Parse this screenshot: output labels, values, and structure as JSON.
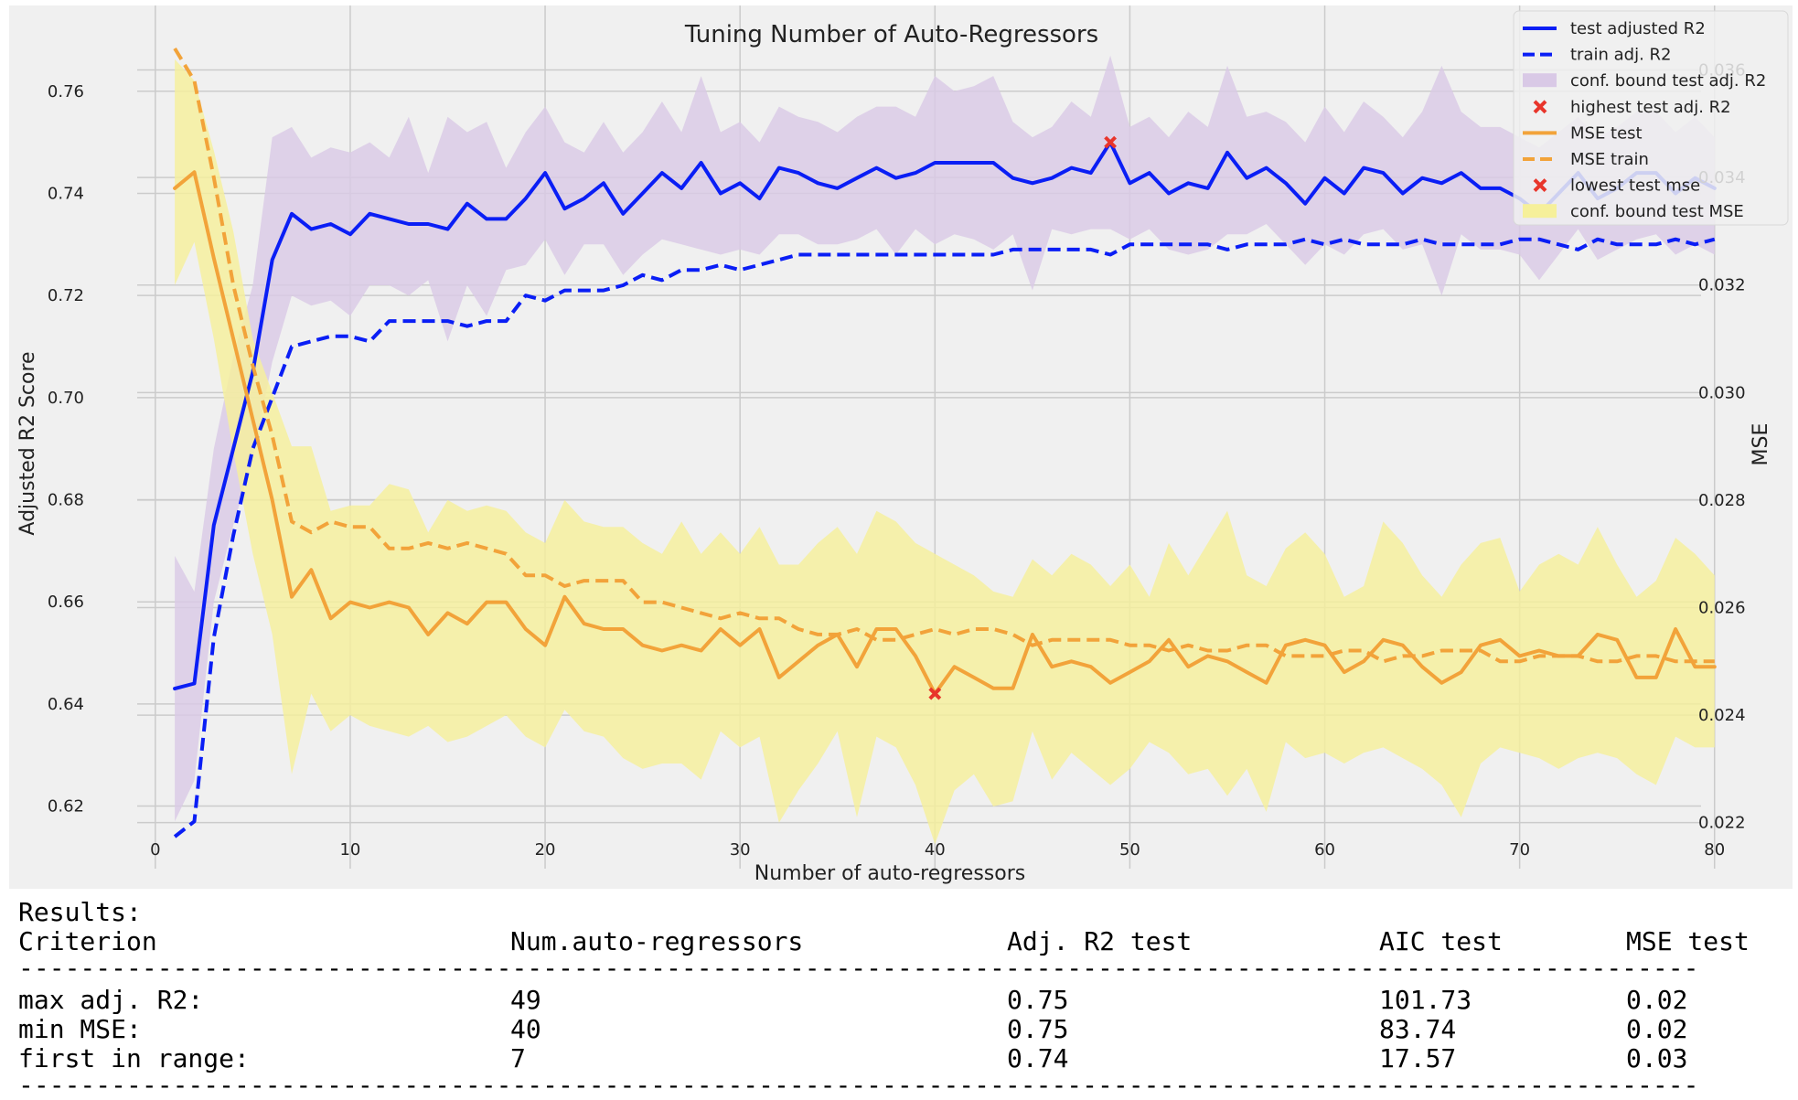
{
  "colors": {
    "test_r2": "#0a1ef5",
    "train_r2": "#0a1ef5",
    "conf_r2": "#d9c9e6",
    "marker": "#e8352b",
    "mse_test": "#f2a33a",
    "mse_train": "#f2a33a",
    "conf_mse": "#f6f09a",
    "plot_bg": "#f0f0f0",
    "grid": "#cbcbcb"
  },
  "chart_data": {
    "type": "line",
    "title": "Tuning Number of Auto-Regressors",
    "xlabel": "Number of auto-regressors",
    "ylabel": "Adjusted R2 Score",
    "y2label": "MSE",
    "xlim": [
      -7.5,
      84
    ],
    "ylim": [
      0.6038,
      0.7768
    ],
    "y2lim": [
      0.02077,
      0.0372
    ],
    "xticks": [
      0,
      10,
      20,
      30,
      40,
      50,
      60,
      70,
      80
    ],
    "xtick_labels": [
      "0",
      "10",
      "20",
      "30",
      "40",
      "50",
      "60",
      "70",
      "80"
    ],
    "yticks": [
      0.62,
      0.64,
      0.66,
      0.68,
      0.7,
      0.72,
      0.74,
      0.76
    ],
    "ytick_labels": [
      "0.62",
      "0.64",
      "0.66",
      "0.68",
      "0.70",
      "0.72",
      "0.74",
      "0.76"
    ],
    "y2ticks": [
      0.022,
      0.024,
      0.026,
      0.028,
      0.03,
      0.032,
      0.034,
      0.036
    ],
    "y2tick_labels": [
      "0.022",
      "0.024",
      "0.026",
      "0.028",
      "0.030",
      "0.032",
      "0.034",
      "0.036"
    ],
    "x": [
      1,
      2,
      3,
      4,
      5,
      6,
      7,
      8,
      9,
      10,
      11,
      12,
      13,
      14,
      15,
      16,
      17,
      18,
      19,
      20,
      21,
      22,
      23,
      24,
      25,
      26,
      27,
      28,
      29,
      30,
      31,
      32,
      33,
      34,
      35,
      36,
      37,
      38,
      39,
      40,
      41,
      42,
      43,
      44,
      45,
      46,
      47,
      48,
      49,
      50,
      51,
      52,
      53,
      54,
      55,
      56,
      57,
      58,
      59,
      60,
      61,
      62,
      63,
      64,
      65,
      66,
      67,
      68,
      69,
      70,
      71,
      72,
      73,
      74,
      75,
      76,
      77,
      78,
      79,
      80
    ],
    "series": [
      {
        "name": "test adjusted R2",
        "axis": "left",
        "style": "solid",
        "values": [
          0.643,
          0.644,
          0.675,
          0.69,
          0.705,
          0.727,
          0.736,
          0.733,
          0.734,
          0.732,
          0.736,
          0.735,
          0.734,
          0.734,
          0.733,
          0.738,
          0.735,
          0.735,
          0.739,
          0.744,
          0.737,
          0.739,
          0.742,
          0.736,
          0.74,
          0.744,
          0.741,
          0.746,
          0.74,
          0.742,
          0.739,
          0.745,
          0.744,
          0.742,
          0.741,
          0.743,
          0.745,
          0.743,
          0.744,
          0.746,
          0.746,
          0.746,
          0.746,
          0.743,
          0.742,
          0.743,
          0.745,
          0.744,
          0.75,
          0.742,
          0.744,
          0.74,
          0.742,
          0.741,
          0.748,
          0.743,
          0.745,
          0.742,
          0.738,
          0.743,
          0.74,
          0.745,
          0.744,
          0.74,
          0.743,
          0.742,
          0.744,
          0.741,
          0.741,
          0.739,
          0.736,
          0.74,
          0.744,
          0.739,
          0.741,
          0.744,
          0.744,
          0.74,
          0.743,
          0.741
        ]
      },
      {
        "name": "train adj. R2",
        "axis": "left",
        "style": "dashed",
        "values": [
          0.614,
          0.617,
          0.653,
          0.673,
          0.69,
          0.7,
          0.71,
          0.711,
          0.712,
          0.712,
          0.711,
          0.715,
          0.715,
          0.715,
          0.715,
          0.714,
          0.715,
          0.715,
          0.72,
          0.719,
          0.721,
          0.721,
          0.721,
          0.722,
          0.724,
          0.723,
          0.725,
          0.725,
          0.726,
          0.725,
          0.726,
          0.727,
          0.728,
          0.728,
          0.728,
          0.728,
          0.728,
          0.728,
          0.728,
          0.728,
          0.728,
          0.728,
          0.728,
          0.729,
          0.729,
          0.729,
          0.729,
          0.729,
          0.728,
          0.73,
          0.73,
          0.73,
          0.73,
          0.73,
          0.729,
          0.73,
          0.73,
          0.73,
          0.731,
          0.73,
          0.731,
          0.73,
          0.73,
          0.73,
          0.731,
          0.73,
          0.73,
          0.73,
          0.73,
          0.731,
          0.731,
          0.73,
          0.729,
          0.731,
          0.73,
          0.73,
          0.73,
          0.731,
          0.73,
          0.731
        ]
      },
      {
        "name": "MSE test",
        "axis": "right",
        "style": "solid",
        "values": [
          0.0338,
          0.0341,
          0.0325,
          0.031,
          0.0295,
          0.028,
          0.0262,
          0.0267,
          0.0258,
          0.0261,
          0.026,
          0.0261,
          0.026,
          0.0255,
          0.0259,
          0.0257,
          0.0261,
          0.0261,
          0.0256,
          0.0253,
          0.0262,
          0.0257,
          0.0256,
          0.0256,
          0.0253,
          0.0252,
          0.0253,
          0.0252,
          0.0256,
          0.0253,
          0.0256,
          0.0247,
          0.025,
          0.0253,
          0.0255,
          0.0249,
          0.0256,
          0.0256,
          0.0251,
          0.0244,
          0.0249,
          0.0247,
          0.0245,
          0.0245,
          0.0255,
          0.0249,
          0.025,
          0.0249,
          0.0246,
          0.0248,
          0.025,
          0.0254,
          0.0249,
          0.0251,
          0.025,
          0.0248,
          0.0246,
          0.0253,
          0.0254,
          0.0253,
          0.0248,
          0.025,
          0.0254,
          0.0253,
          0.0249,
          0.0246,
          0.0248,
          0.0253,
          0.0254,
          0.0251,
          0.0252,
          0.0251,
          0.0251,
          0.0255,
          0.0254,
          0.0247,
          0.0247,
          0.0256,
          0.0249,
          0.0249
        ]
      },
      {
        "name": "MSE train",
        "axis": "right",
        "style": "dashed",
        "values": [
          0.0364,
          0.0358,
          0.034,
          0.032,
          0.0305,
          0.0292,
          0.0276,
          0.0274,
          0.0276,
          0.0275,
          0.0275,
          0.0271,
          0.0271,
          0.0272,
          0.0271,
          0.0272,
          0.0271,
          0.027,
          0.0266,
          0.0266,
          0.0264,
          0.0265,
          0.0265,
          0.0265,
          0.0261,
          0.0261,
          0.026,
          0.0259,
          0.0258,
          0.0259,
          0.0258,
          0.0258,
          0.0256,
          0.0255,
          0.0255,
          0.0256,
          0.0254,
          0.0254,
          0.0255,
          0.0256,
          0.0255,
          0.0256,
          0.0256,
          0.0255,
          0.0253,
          0.0254,
          0.0254,
          0.0254,
          0.0254,
          0.0253,
          0.0253,
          0.0252,
          0.0253,
          0.0252,
          0.0252,
          0.0253,
          0.0253,
          0.0251,
          0.0251,
          0.0251,
          0.0252,
          0.0252,
          0.025,
          0.0251,
          0.0251,
          0.0252,
          0.0252,
          0.0252,
          0.025,
          0.025,
          0.0251,
          0.0251,
          0.0251,
          0.025,
          0.025,
          0.0251,
          0.0251,
          0.025,
          0.025,
          0.025
        ]
      }
    ],
    "bands": [
      {
        "name": "conf. bound test adj. R2",
        "axis": "left",
        "upper": [
          0.669,
          0.662,
          0.69,
          0.708,
          0.722,
          0.751,
          0.753,
          0.747,
          0.749,
          0.748,
          0.75,
          0.747,
          0.755,
          0.744,
          0.755,
          0.752,
          0.754,
          0.745,
          0.752,
          0.757,
          0.75,
          0.748,
          0.754,
          0.748,
          0.752,
          0.758,
          0.752,
          0.763,
          0.752,
          0.754,
          0.75,
          0.757,
          0.755,
          0.754,
          0.752,
          0.755,
          0.757,
          0.757,
          0.755,
          0.763,
          0.76,
          0.761,
          0.763,
          0.754,
          0.751,
          0.753,
          0.758,
          0.755,
          0.767,
          0.753,
          0.755,
          0.751,
          0.756,
          0.753,
          0.765,
          0.755,
          0.756,
          0.754,
          0.75,
          0.757,
          0.752,
          0.758,
          0.755,
          0.751,
          0.756,
          0.765,
          0.756,
          0.753,
          0.753,
          0.751,
          0.749,
          0.752,
          0.755,
          0.751,
          0.753,
          0.756,
          0.756,
          0.752,
          0.755,
          0.751
        ],
        "lower": [
          0.617,
          0.625,
          0.66,
          0.675,
          0.688,
          0.707,
          0.72,
          0.718,
          0.719,
          0.716,
          0.722,
          0.722,
          0.72,
          0.723,
          0.711,
          0.722,
          0.716,
          0.725,
          0.726,
          0.731,
          0.724,
          0.73,
          0.73,
          0.724,
          0.728,
          0.731,
          0.73,
          0.729,
          0.728,
          0.729,
          0.728,
          0.732,
          0.732,
          0.73,
          0.73,
          0.731,
          0.733,
          0.728,
          0.733,
          0.73,
          0.732,
          0.731,
          0.729,
          0.732,
          0.721,
          0.733,
          0.732,
          0.733,
          0.733,
          0.731,
          0.733,
          0.729,
          0.728,
          0.729,
          0.732,
          0.732,
          0.734,
          0.73,
          0.726,
          0.73,
          0.728,
          0.732,
          0.733,
          0.729,
          0.73,
          0.72,
          0.732,
          0.729,
          0.729,
          0.728,
          0.723,
          0.728,
          0.733,
          0.727,
          0.729,
          0.731,
          0.732,
          0.728,
          0.73,
          0.728
        ]
      },
      {
        "name": "conf. bound test MSE",
        "axis": "right",
        "upper": [
          0.0362,
          0.0358,
          0.0345,
          0.033,
          0.031,
          0.03,
          0.029,
          0.029,
          0.0278,
          0.0279,
          0.0279,
          0.0283,
          0.0282,
          0.0274,
          0.028,
          0.0278,
          0.0279,
          0.0278,
          0.0274,
          0.0272,
          0.028,
          0.0276,
          0.0275,
          0.0275,
          0.0272,
          0.027,
          0.0276,
          0.027,
          0.0274,
          0.027,
          0.0275,
          0.0268,
          0.0268,
          0.0272,
          0.0275,
          0.027,
          0.0278,
          0.0276,
          0.0272,
          0.027,
          0.0268,
          0.0266,
          0.0263,
          0.0262,
          0.0269,
          0.0266,
          0.027,
          0.0268,
          0.0264,
          0.0268,
          0.0262,
          0.0272,
          0.0266,
          0.0272,
          0.0278,
          0.0266,
          0.0264,
          0.0271,
          0.0274,
          0.027,
          0.0262,
          0.0264,
          0.0276,
          0.0272,
          0.0266,
          0.0262,
          0.0268,
          0.0272,
          0.0273,
          0.0263,
          0.0268,
          0.027,
          0.0268,
          0.0275,
          0.0268,
          0.0262,
          0.0265,
          0.0273,
          0.027,
          0.0266
        ],
        "lower": [
          0.032,
          0.0328,
          0.031,
          0.0289,
          0.027,
          0.0255,
          0.0229,
          0.0244,
          0.0237,
          0.024,
          0.0238,
          0.0237,
          0.0236,
          0.0238,
          0.0235,
          0.0236,
          0.0238,
          0.024,
          0.0236,
          0.0234,
          0.0241,
          0.0237,
          0.0236,
          0.0232,
          0.023,
          0.0231,
          0.0231,
          0.0228,
          0.0237,
          0.0234,
          0.0236,
          0.022,
          0.0226,
          0.0231,
          0.0237,
          0.0221,
          0.0236,
          0.0234,
          0.0227,
          0.0216,
          0.0226,
          0.0229,
          0.0223,
          0.0224,
          0.0237,
          0.0228,
          0.0233,
          0.023,
          0.0227,
          0.023,
          0.0235,
          0.0233,
          0.0229,
          0.023,
          0.0225,
          0.023,
          0.0222,
          0.0235,
          0.0232,
          0.0233,
          0.0231,
          0.0233,
          0.0234,
          0.0232,
          0.023,
          0.0227,
          0.0221,
          0.0231,
          0.0234,
          0.0233,
          0.0232,
          0.023,
          0.0232,
          0.0233,
          0.0232,
          0.0229,
          0.0227,
          0.0236,
          0.0234,
          0.0234
        ]
      }
    ],
    "markers": [
      {
        "name": "highest test adj. R2",
        "axis": "left",
        "x": 49,
        "y": 0.75
      },
      {
        "name": "lowest test mse",
        "axis": "right",
        "x": 40,
        "y": 0.0244
      }
    ],
    "legend": {
      "position": "top-right",
      "entries": [
        "test adjusted R2",
        "train adj. R2",
        "conf. bound test adj. R2",
        "highest test adj. R2",
        "MSE test",
        "MSE train",
        "lowest test mse",
        "conf. bound test MSE"
      ]
    }
  },
  "results": {
    "heading": "Results:",
    "columns": [
      "Criterion",
      "Num.auto-regressors",
      "Adj. R2 test",
      "AIC test",
      "MSE test"
    ],
    "rows": [
      [
        "max adj. R2:",
        "49",
        "0.75",
        "101.73",
        "0.02"
      ],
      [
        "min MSE:",
        "40",
        "0.75",
        "83.74",
        "0.02"
      ],
      [
        "first in range:",
        "7",
        "0.74",
        "17.57",
        "0.03"
      ]
    ]
  }
}
